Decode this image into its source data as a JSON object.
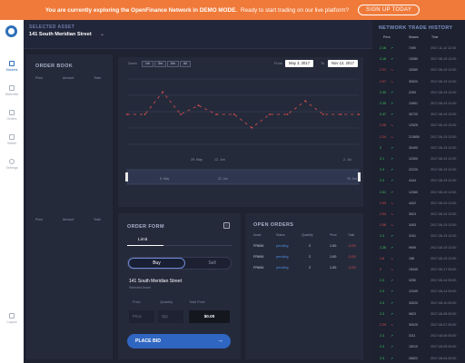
{
  "banner": {
    "bold": "You are currently exploring the OpenFinance Network in DEMO MODE.",
    "msg": "Ready to start trading on our live platform?",
    "signup": "SIGN UP TODAY"
  },
  "nav": [
    {
      "label": "Markets",
      "icon": "markets-icon"
    },
    {
      "label": "Watchlist",
      "icon": "watchlist-icon"
    },
    {
      "label": "Orders",
      "icon": "orders-icon"
    },
    {
      "label": "Wallet",
      "icon": "wallet-icon"
    },
    {
      "label": "Settings",
      "icon": "settings-icon"
    },
    {
      "label": "Logout",
      "icon": "logout-icon"
    }
  ],
  "asset": {
    "label": "SELECTED ASSET",
    "name": "141 South Meridian Street"
  },
  "orderbook": {
    "title": "ORDER BOOK",
    "cols": [
      "Price",
      "Amount",
      "Total"
    ]
  },
  "chart": {
    "zoom_label": "Zoom",
    "zoom": [
      "1m",
      "3m",
      "6m",
      "All"
    ],
    "from_label": "From",
    "from": "May 3, 2017",
    "to_label": "To",
    "to": "Nov 12, 2017",
    "x_ticks": [
      "29. May",
      "12. Jun",
      "2. Jul"
    ],
    "nav_ticks": [
      "8. May",
      "22. Jun",
      "30. Jun"
    ]
  },
  "chart_data": {
    "type": "line",
    "series": [
      {
        "values": [
          1.0,
          1.0,
          1.05,
          1.0,
          1.02,
          1.0,
          1.0,
          0.97,
          1.0,
          1.0,
          1.03,
          1.0,
          1.0,
          1.0
        ]
      }
    ],
    "grid": true
  },
  "order_form": {
    "title": "ORDER FORM",
    "tab": "Limit",
    "buy": "Buy",
    "sell": "Sell",
    "asset": "141 South Meridian Street",
    "sub": "Selected Asset",
    "price_label": "Price",
    "qty_label": "Quantity",
    "total_label": "Total Price",
    "price_ph": "Price",
    "qty_ph": "Qty",
    "total": "$0.00",
    "place": "PLACE BID"
  },
  "open_orders": {
    "title": "OPEN ORDERS",
    "cols": [
      "Asset",
      "Status",
      "Quantity",
      "Price",
      "Total"
    ],
    "rows": [
      {
        "asset": "FR606",
        "status": "pending",
        "qty": "2",
        "price": "1.00",
        "total": "-2.00"
      },
      {
        "asset": "FR606",
        "status": "pending",
        "qty": "2",
        "price": "1.00",
        "total": "-2.00"
      },
      {
        "asset": "FR606",
        "status": "pending",
        "qty": "2",
        "price": "1.00",
        "total": "-2.00"
      }
    ]
  },
  "history": {
    "title": "NETWORK TRADE HISTORY",
    "cols": [
      "Price",
      "Shares",
      "Time"
    ],
    "rows": [
      {
        "p": "2.16",
        "s": "7490",
        "t": "2017-11-12 12:34",
        "d": "up"
      },
      {
        "p": "2.16",
        "s": "13080",
        "t": "2017-06-19 12:00",
        "d": "up"
      },
      {
        "p": "2.21",
        "s": "15360",
        "t": "2017-06-19 12:00",
        "d": "down"
      },
      {
        "p": "2.07",
        "s": "30520",
        "t": "2017-06-19 12:00",
        "d": "down"
      },
      {
        "p": "2.30",
        "s": "2250",
        "t": "2017-06-19 12:00",
        "d": "up"
      },
      {
        "p": "2.25",
        "s": "12651",
        "t": "2017-06-19 12:00",
        "d": "up"
      },
      {
        "p": "2.47",
        "s": "30720",
        "t": "2017-06-19 12:00",
        "d": "up"
      },
      {
        "p": "2.26",
        "s": "12525",
        "t": "2017-06-19 12:00",
        "d": "down"
      },
      {
        "p": "2.24",
        "s": "213650",
        "t": "2017-06-19 12:00",
        "d": "down"
      },
      {
        "p": "2",
        "s": "30490",
        "t": "2017-06-19 12:00",
        "d": "up"
      },
      {
        "p": "2.1",
        "s": "12300",
        "t": "2017-06-19 12:00",
        "d": "up"
      },
      {
        "p": "2.3",
        "s": "22220",
        "t": "2017-06-19 12:00",
        "d": "up"
      },
      {
        "p": "2.3",
        "s": "4444",
        "t": "2017-06-19 12:00",
        "d": "up"
      },
      {
        "p": "2.01",
        "s": "12360",
        "t": "2017-06-19 12:00",
        "d": "up"
      },
      {
        "p": "2.03",
        "s": "4422",
        "t": "2017-06-19 12:00",
        "d": "down"
      },
      {
        "p": "2.04",
        "s": "3523",
        "t": "2017-06-19 12:00",
        "d": "down"
      },
      {
        "p": "2.06",
        "s": "3453",
        "t": "2017-06-19 12:00",
        "d": "down"
      },
      {
        "p": "2.3",
        "s": "3151",
        "t": "2017-06-19 12:00",
        "d": "up"
      },
      {
        "p": "2.26",
        "s": "9999",
        "t": "2017-06-19 12:00",
        "d": "up"
      },
      {
        "p": "1.8",
        "s": "158",
        "t": "2017-06-19 12:00",
        "d": "down"
      },
      {
        "p": "2",
        "s": "15345",
        "t": "2017-06-17 00:00",
        "d": "down"
      },
      {
        "p": "2.3",
        "s": "3250",
        "t": "2017-06-14 00:00",
        "d": "up"
      },
      {
        "p": "2.3",
        "s": "12345",
        "t": "2017-06-14 00:00",
        "d": "up"
      },
      {
        "p": "2.3",
        "s": "33020",
        "t": "2017-06-10 00:00",
        "d": "up"
      },
      {
        "p": "2.3",
        "s": "9823",
        "t": "2017-06-08 00:00",
        "d": "up"
      },
      {
        "p": "2.29",
        "s": "30025",
        "t": "2017-06-07 00:00",
        "d": "down"
      },
      {
        "p": "2.3",
        "s": "3111",
        "t": "2017-06-06 00:00",
        "d": "up"
      },
      {
        "p": "2.3",
        "s": "15010",
        "t": "2017-06-05 00:00",
        "d": "up"
      },
      {
        "p": "2.3",
        "s": "26822",
        "t": "2017-06-04 00:00",
        "d": "up"
      }
    ]
  }
}
